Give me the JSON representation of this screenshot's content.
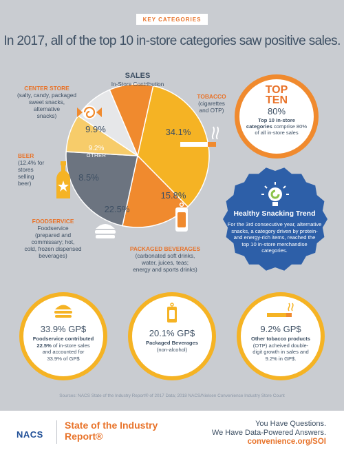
{
  "badge_label": "KEY CATEGORIES",
  "headline": "In 2017, all of the top 10 in-store categories saw positive sales.",
  "chart_data": {
    "type": "pie",
    "title": "SALES",
    "subtitle": "In-Store Contribution",
    "categories": [
      "Tobacco",
      "Packaged Beverages",
      "Foodservice",
      "Beer",
      "Other",
      "Center Store"
    ],
    "values": [
      34.1,
      15.8,
      22.5,
      8.5,
      9.2,
      9.9
    ],
    "value_labels": [
      "34.1%",
      "15.8%",
      "22.5%",
      "8.5%",
      "9.2%",
      "9.9%"
    ],
    "colors": [
      "#f5b324",
      "#f08a2e",
      "#6c7480",
      "#f7cc6a",
      "#e6e7e9",
      "#f08a2e"
    ]
  },
  "labels": {
    "tobacco": {
      "head": "TOBACCO",
      "lines": [
        "(cigarettes",
        "and OTP)"
      ]
    },
    "center_store": {
      "head": "CENTER STORE",
      "lines": [
        "(salty, candy, packaged",
        "sweet snacks,",
        "alternative",
        "snacks)"
      ]
    },
    "beer": {
      "head": "BEER",
      "lines": [
        "(12.4% for",
        "stores",
        "selling",
        "beer)"
      ]
    },
    "foodservice": {
      "head": "FOODSERVICE",
      "lines": [
        "Foodservice",
        "(prepared and",
        "commissary; hot,",
        "cold, frozen dispensed",
        "beverages)"
      ]
    },
    "packaged_bev": {
      "head": "PACKAGED BEVERAGES",
      "lines": [
        "(carbonated soft drinks,",
        "water, juices, teas;",
        "energy and sports drinks)"
      ]
    },
    "other": "OTHER"
  },
  "top_ten": {
    "title_1": "TOP",
    "title_2": "TEN",
    "value": "80%",
    "bold_1": "Top 10 in-store",
    "bold_2": "categories",
    "text_2": " comprise 80%",
    "text_3": "of all in-store sales"
  },
  "healthy": {
    "title": "Healthy Snacking Trend",
    "lines": [
      "For the 3rd consecutive year, alternative",
      "snacks, a category driven by protein-",
      "and energy-rich items, reached the",
      "top 10 in-store merchandise",
      "categories."
    ]
  },
  "bottom": [
    {
      "value": "33.9% GP$",
      "bold": [
        "Foodservice contributed",
        "22.5%"
      ],
      "lines": [
        " of in-store sales",
        "and accounted for",
        "33.9% of GP$"
      ]
    },
    {
      "value": "20.1% GP$",
      "bold": [
        "Packaged Beverages"
      ],
      "lines": [
        "(non-alcohol)"
      ]
    },
    {
      "value": "9.2% GP$",
      "bold": [
        "Other tobacco products"
      ],
      "lines": [
        "(OTP) acheived double-",
        "digit growth in sales and",
        "9.2% in GP$."
      ]
    }
  ],
  "sources": "Sources: NACS State of the Industry Report® of 2017 Data; 2018 NACS/Nielsen Convenience Industry Store Count",
  "footer": {
    "logo": "NACS",
    "report_line_1": "State of the Industry",
    "report_line_2": "Report®",
    "tag_1": "You Have Questions.",
    "tag_2": "We Have Data-Powered Answers.",
    "url": "convenience.org/SOI"
  },
  "colors": {
    "orange": "#e8732a",
    "navy": "#3d4f63",
    "blue": "#2d5fa8",
    "yellow": "#f5b324",
    "gray_bg": "#c9ccd1"
  }
}
